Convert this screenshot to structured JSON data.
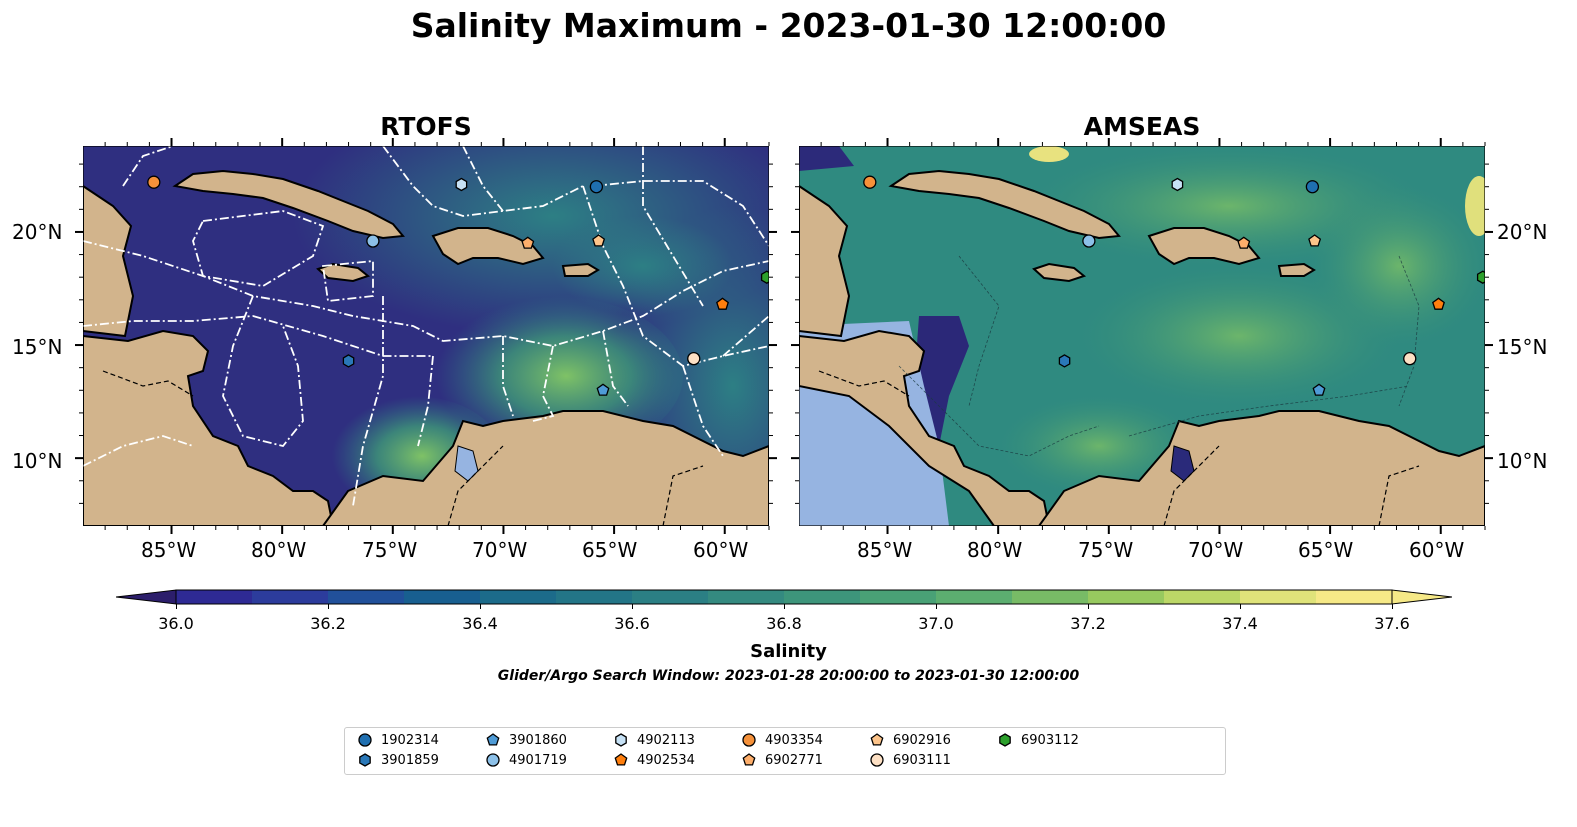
{
  "title": "Salinity Maximum - 2023-01-30 12:00:00",
  "panels": [
    {
      "name": "RTOFS"
    },
    {
      "name": "AMSEAS"
    }
  ],
  "lon_ticks": [
    "85°W",
    "80°W",
    "75°W",
    "70°W",
    "65°W",
    "60°W"
  ],
  "lat_ticks": [
    "20°N",
    "15°N",
    "10°N"
  ],
  "colorbar": {
    "label": "Salinity",
    "min": 36.0,
    "max": 37.6,
    "step": 0.1,
    "tick_labels": [
      "36.0",
      "36.2",
      "36.4",
      "36.6",
      "36.8",
      "37.0",
      "37.2",
      "37.4",
      "37.6"
    ],
    "colors": [
      "#2c1e6b",
      "#2e2a94",
      "#2c3c9c",
      "#21509a",
      "#185f90",
      "#1c6b8a",
      "#237587",
      "#2b7f84",
      "#348a80",
      "#3d957b",
      "#49a176",
      "#5cae70",
      "#78bb66",
      "#97c95f",
      "#bcd767",
      "#dfe37a",
      "#f6e987"
    ]
  },
  "search_window": "Glider/Argo Search Window: 2023-01-28 20:00:00 to 2023-01-30 12:00:00",
  "colors": {
    "land": "#d2b48c",
    "lake": "#96b4e1",
    "low_salinity": "#2d2a7a",
    "mid_salinity": "#2d7f84",
    "high_salinity": "#8fc660"
  },
  "platforms": [
    {
      "id": "1902314",
      "marker": "circle",
      "color": "#1f6fb0",
      "lon": -65.8,
      "lat": 22.0
    },
    {
      "id": "3901859",
      "marker": "hexagon",
      "color": "#2a78b8",
      "lon": -77.0,
      "lat": 14.3
    },
    {
      "id": "3901860",
      "marker": "pentagon",
      "color": "#4f9bd6",
      "lon": -65.5,
      "lat": 13.0
    },
    {
      "id": "4901719",
      "marker": "circle",
      "color": "#8cc0e8",
      "lon": -75.9,
      "lat": 19.6
    },
    {
      "id": "4902113",
      "marker": "hexagon",
      "color": "#c6e1f5",
      "lon": -71.9,
      "lat": 22.1
    },
    {
      "id": "4902534",
      "marker": "pentagon",
      "color": "#ff7f0e",
      "lon": -60.1,
      "lat": 16.8
    },
    {
      "id": "4903354",
      "marker": "circle",
      "color": "#f5913a",
      "lon": -85.8,
      "lat": 22.2
    },
    {
      "id": "6902771",
      "marker": "pentagon",
      "color": "#fdae6b",
      "lon": -68.9,
      "lat": 19.5
    },
    {
      "id": "6902916",
      "marker": "pentagon",
      "color": "#fdc48a",
      "lon": -65.7,
      "lat": 19.6
    },
    {
      "id": "6903111",
      "marker": "circle",
      "color": "#fde0c4",
      "lon": -61.4,
      "lat": 14.4
    },
    {
      "id": "6903112",
      "marker": "hexagon",
      "color": "#2ca02c",
      "lon": -58.1,
      "lat": 18.0
    }
  ]
}
